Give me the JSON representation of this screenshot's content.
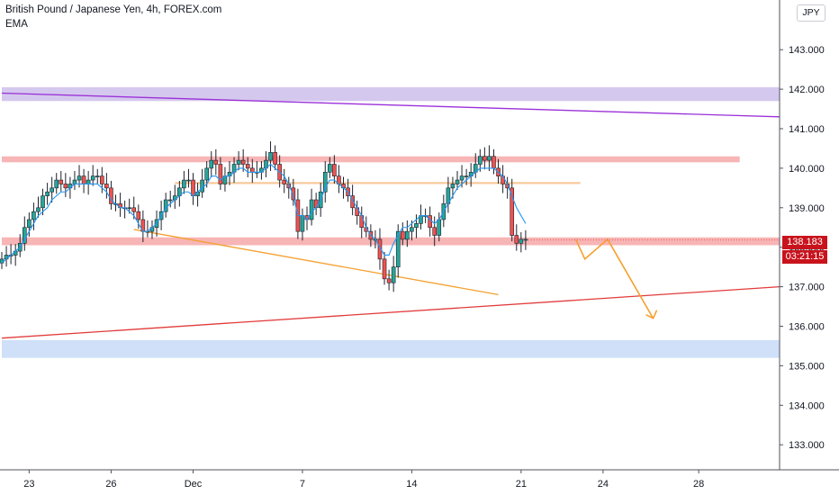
{
  "header": {
    "symbol_title": "British Pound / Japanese Yen, 4h, FOREX.com",
    "indicator": "EMA",
    "currency": "JPY"
  },
  "price_badge": {
    "price": "138.183",
    "timer": "03:21:15"
  },
  "colors": {
    "up": "#26a69a",
    "down": "#ef5350",
    "candle_body": "#1e222d",
    "ema": "#2196f3",
    "resistance_zone": "#f7b5b5",
    "purple_zone": "#d5c8ee",
    "blue_zone": "#cfe0f8",
    "orange": "#f4a02f",
    "trendline_red": "#e23b3b",
    "trendline_purple": "#9b30d8",
    "price_badge": "#c8131d"
  },
  "chart_data": {
    "type": "candlestick",
    "title": "British Pound / Japanese Yen, 4h, FOREX.com",
    "ylim": [
      132.4,
      144.2
    ],
    "y_ticks": [
      133.0,
      134.0,
      135.0,
      136.0,
      137.0,
      138.0,
      139.0,
      140.0,
      141.0,
      142.0,
      143.0
    ],
    "x_labels": [
      "23",
      "26",
      "Dec",
      "7",
      "14",
      "21",
      "24",
      "28"
    ],
    "x_label_index": [
      6,
      24,
      42,
      66,
      90,
      114,
      132,
      153
    ],
    "close_series": [
      137.7,
      137.8,
      137.8,
      137.9,
      138.1,
      138.5,
      138.7,
      138.9,
      139.0,
      139.3,
      139.4,
      139.5,
      139.7,
      139.6,
      139.5,
      139.6,
      139.7,
      139.8,
      139.6,
      139.7,
      139.8,
      139.8,
      139.6,
      139.5,
      139.1,
      139.1,
      139.0,
      139.0,
      139.0,
      138.9,
      138.7,
      138.4,
      138.4,
      138.5,
      138.7,
      138.9,
      139.2,
      139.2,
      139.3,
      139.5,
      139.7,
      139.7,
      139.3,
      139.4,
      139.7,
      140.0,
      140.2,
      140.1,
      139.6,
      139.8,
      139.9,
      140.1,
      140.2,
      140.1,
      140.0,
      139.9,
      139.9,
      140.0,
      140.2,
      140.4,
      140.1,
      139.7,
      139.6,
      139.5,
      139.2,
      138.4,
      138.8,
      138.7,
      139.2,
      139.0,
      139.4,
      139.9,
      140.1,
      139.8,
      139.6,
      139.5,
      139.3,
      139.0,
      138.8,
      138.5,
      138.4,
      138.2,
      138.2,
      137.7,
      137.2,
      137.1,
      137.5,
      138.4,
      138.2,
      138.4,
      138.5,
      138.6,
      138.8,
      138.8,
      138.5,
      138.3,
      138.7,
      139.1,
      139.5,
      139.6,
      139.7,
      139.8,
      139.8,
      139.9,
      140.1,
      140.3,
      140.2,
      140.3,
      140.0,
      139.8,
      139.6,
      139.5,
      138.3,
      138.1,
      138.2,
      138.2
    ],
    "ema_series": [
      137.6,
      137.7,
      137.8,
      137.9,
      138.0,
      138.2,
      138.4,
      138.6,
      138.8,
      138.9,
      139.0,
      139.2,
      139.3,
      139.4,
      139.4,
      139.5,
      139.6,
      139.6,
      139.6,
      139.6,
      139.6,
      139.6,
      139.5,
      139.4,
      139.2,
      139.1,
      139.0,
      139.0,
      138.9,
      138.8,
      138.6,
      138.4,
      138.4,
      138.5,
      138.6,
      138.8,
      139.0,
      139.1,
      139.2,
      139.3,
      139.4,
      139.4,
      139.3,
      139.4,
      139.5,
      139.6,
      139.8,
      139.8,
      139.7,
      139.8,
      139.8,
      139.9,
      140.0,
      140.0,
      139.9,
      139.9,
      139.9,
      139.9,
      140.0,
      140.1,
      140.0,
      139.9,
      139.8,
      139.6,
      139.3,
      138.8,
      138.8,
      138.7,
      138.9,
      139.0,
      139.2,
      139.5,
      139.7,
      139.7,
      139.6,
      139.5,
      139.4,
      139.2,
      139.0,
      138.8,
      138.5,
      138.3,
      138.2,
      138.0,
      137.8,
      137.8,
      138.1,
      138.3,
      138.5,
      138.5,
      138.6,
      138.7,
      138.8,
      138.8,
      138.7,
      138.6,
      138.7,
      138.9,
      139.1,
      139.3,
      139.5,
      139.6,
      139.7,
      139.8,
      139.9,
      140.0,
      140.0,
      140.0,
      140.0,
      139.9,
      139.8,
      139.6,
      139.3,
      139.0,
      138.8,
      138.6
    ],
    "horizontal_zones": [
      {
        "y_low": 140.15,
        "y_high": 140.3,
        "x_from": 0,
        "x_to": 162,
        "color": "#f7b5b5"
      },
      {
        "y_low": 138.05,
        "y_high": 138.25,
        "x_from": 0,
        "x_to": 200,
        "color": "#f7b5b5"
      },
      {
        "y_low": 141.7,
        "y_high": 142.05,
        "x_from": 0,
        "x_to": 200,
        "color": "#d5c8ee"
      },
      {
        "y_low": 135.2,
        "y_high": 135.65,
        "x_from": 0,
        "x_to": 200,
        "color": "#cfe0f8"
      },
      {
        "y_low": 139.6,
        "y_high": 139.65,
        "x_from": 38,
        "x_to": 127,
        "color": "#f8c89a"
      }
    ],
    "trendlines": [
      {
        "from": [
          0,
          141.9
        ],
        "to": [
          200,
          141.3
        ],
        "color": "#9b30d8"
      },
      {
        "from": [
          0,
          135.7
        ],
        "to": [
          172,
          137.0
        ],
        "color": "#e23b3b"
      },
      {
        "from": [
          29,
          138.45
        ],
        "to": [
          109,
          136.8
        ],
        "color": "#f4a02f"
      }
    ],
    "projection_path": [
      [
        126,
        138.2
      ],
      [
        128,
        137.7
      ],
      [
        133,
        138.2
      ],
      [
        143,
        136.2
      ]
    ],
    "last_price": 138.183
  }
}
